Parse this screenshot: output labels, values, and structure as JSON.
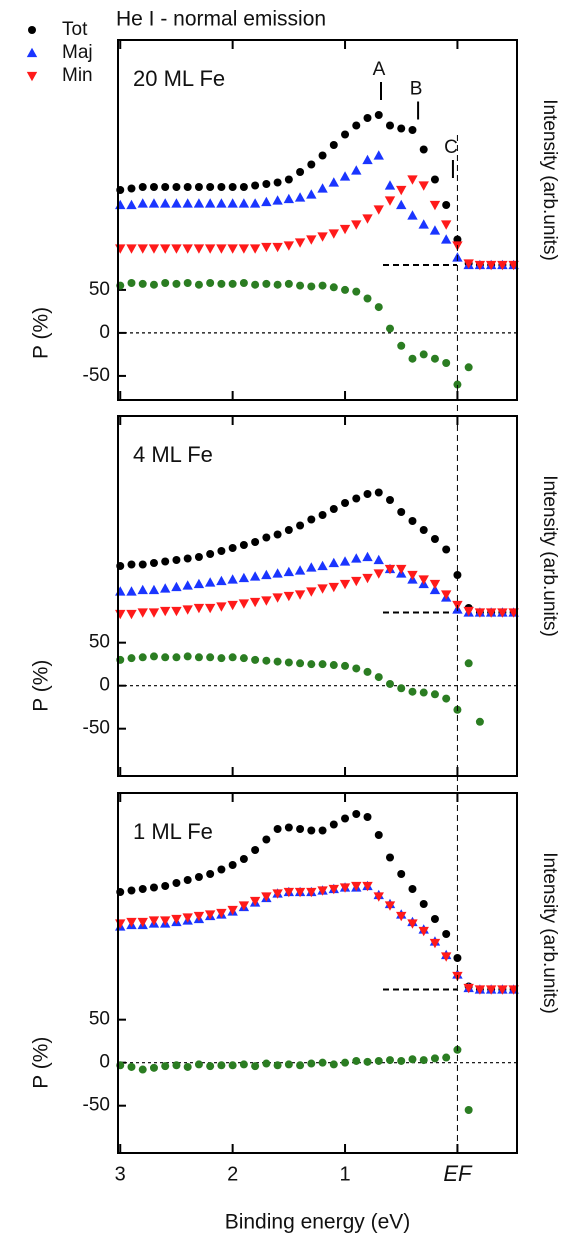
{
  "chart_data": [
    {
      "type": "scatter",
      "title": "He I - normal emission",
      "label": "20 ML Fe",
      "x": [
        3.0,
        2.9,
        2.8,
        2.7,
        2.6,
        2.5,
        2.4,
        2.3,
        2.2,
        2.1,
        2.0,
        1.9,
        1.8,
        1.7,
        1.6,
        1.5,
        1.4,
        1.3,
        1.2,
        1.1,
        1.0,
        0.9,
        0.8,
        0.7,
        0.6,
        0.5,
        0.4,
        0.3,
        0.2,
        0.1,
        0.0,
        -0.1,
        -0.2,
        -0.3,
        -0.4,
        -0.5
      ],
      "xlim": [
        3.02,
        -0.53
      ],
      "xticks": [
        3,
        2,
        1,
        0
      ],
      "ylim": [
        -78,
        108
      ],
      "yticks": [
        -50,
        0,
        50
      ],
      "ylabel": "P (%)",
      "y2lim": [
        -10,
        150
      ],
      "y2label": "Intensity (arb.units)",
      "annotations": [
        {
          "text": "A",
          "x": 0.68,
          "y": 110
        },
        {
          "text": "B",
          "x": 0.35,
          "y": 97
        },
        {
          "text": "C",
          "x": 0.04,
          "y": 58
        }
      ],
      "series": [
        {
          "name": "Tot",
          "color": "#000000",
          "marker": "circle",
          "axis": "y2",
          "values": [
            50,
            51,
            52,
            52,
            52,
            52,
            52,
            52,
            52,
            52,
            52,
            52,
            53,
            54,
            55,
            57,
            62,
            67,
            73,
            80,
            87,
            93,
            98,
            100,
            93,
            91,
            90,
            77,
            57,
            40,
            17,
            1,
            0,
            0,
            0,
            0
          ]
        },
        {
          "name": "Maj",
          "color": "#1a35ff",
          "marker": "triangle-up",
          "axis": "y2",
          "values": [
            40,
            40,
            41,
            41,
            41,
            41,
            41,
            41,
            41,
            41,
            41,
            41,
            41,
            42,
            43,
            44,
            45,
            47,
            51,
            55,
            59,
            63,
            70,
            73,
            53,
            40,
            33,
            27,
            23,
            17,
            5,
            0,
            0,
            0,
            0,
            0
          ]
        },
        {
          "name": "Min",
          "color": "#ff1a1a",
          "marker": "triangle-down",
          "axis": "y2",
          "values": [
            11,
            11,
            11,
            11,
            11,
            11,
            11,
            11,
            11,
            11,
            11,
            11,
            11,
            12,
            12,
            13,
            15,
            17,
            19,
            21,
            24,
            27,
            31,
            37,
            43,
            50,
            57,
            53,
            40,
            27,
            13,
            1,
            0,
            0,
            0,
            0
          ]
        },
        {
          "color": "#2b7d22",
          "marker": "circle",
          "values": [
            55,
            58,
            57,
            56,
            58,
            57,
            58,
            56,
            58,
            57,
            57,
            58,
            56,
            57,
            56,
            57,
            55,
            54,
            55,
            53,
            50,
            48,
            40,
            30,
            5,
            -15,
            -30,
            -25,
            -30,
            -35,
            -60,
            -40,
            null,
            null,
            null,
            null
          ]
        }
      ]
    },
    {
      "type": "scatter",
      "label": "4 ML Fe",
      "x": [
        3.0,
        2.9,
        2.8,
        2.7,
        2.6,
        2.5,
        2.4,
        2.3,
        2.2,
        2.1,
        2.0,
        1.9,
        1.8,
        1.7,
        1.6,
        1.5,
        1.4,
        1.3,
        1.2,
        1.1,
        1.0,
        0.9,
        0.8,
        0.7,
        0.6,
        0.5,
        0.4,
        0.3,
        0.2,
        0.1,
        0.0,
        -0.1,
        -0.2,
        -0.3,
        -0.4,
        -0.5
      ],
      "xlim": [
        3.02,
        -0.53
      ],
      "xticks": [
        3,
        2,
        1,
        0
      ],
      "ylim": [
        -105,
        81
      ],
      "yticks": [
        -50,
        0,
        50
      ],
      "ylabel": "P (%)",
      "y2lim": [
        -29,
        131
      ],
      "y2label": "Intensity (arb.units)",
      "series": [
        {
          "color": "#000000",
          "marker": "circle",
          "axis": "y2",
          "values": [
            31,
            32,
            32,
            33,
            34,
            35,
            36,
            37,
            39,
            41,
            43,
            45,
            47,
            50,
            52,
            55,
            58,
            62,
            65,
            69,
            73,
            76,
            79,
            80,
            75,
            67,
            61,
            55,
            49,
            42,
            25,
            3,
            0,
            0,
            0,
            0
          ]
        },
        {
          "color": "#1a35ff",
          "marker": "triangle-up",
          "axis": "y2",
          "values": [
            14,
            14,
            15,
            15,
            16,
            17,
            18,
            19,
            20,
            21,
            22,
            23,
            24,
            25,
            26,
            27,
            28,
            30,
            31,
            33,
            34,
            36,
            37,
            35,
            29,
            26,
            22,
            19,
            15,
            10,
            2,
            0,
            0,
            0,
            0,
            0
          ]
        },
        {
          "color": "#ff1a1a",
          "marker": "triangle-down",
          "axis": "y2",
          "values": [
            -1,
            -1,
            0,
            0,
            1,
            1,
            2,
            3,
            3,
            4,
            5,
            6,
            7,
            8,
            10,
            11,
            12,
            14,
            16,
            17,
            19,
            21,
            23,
            26,
            29,
            29,
            25,
            22,
            19,
            12,
            5,
            1,
            0,
            0,
            0,
            0
          ]
        },
        {
          "color": "#2b7d22",
          "marker": "circle",
          "values": [
            30,
            32,
            33,
            34,
            33,
            33,
            34,
            33,
            33,
            32,
            33,
            32,
            30,
            29,
            28,
            27,
            26,
            25,
            25,
            24,
            23,
            20,
            16,
            10,
            2,
            -3,
            -7,
            -8,
            -10,
            -15,
            -28,
            26,
            -42,
            null,
            null,
            null
          ]
        }
      ]
    },
    {
      "type": "scatter",
      "label": "1 ML Fe",
      "x": [
        3.0,
        2.9,
        2.8,
        2.7,
        2.6,
        2.5,
        2.4,
        2.3,
        2.2,
        2.1,
        2.0,
        1.9,
        1.8,
        1.7,
        1.6,
        1.5,
        1.4,
        1.3,
        1.2,
        1.1,
        1.0,
        0.9,
        0.8,
        0.7,
        0.6,
        0.5,
        0.4,
        0.3,
        0.2,
        0.1,
        0.0,
        -0.1,
        -0.2,
        -0.3,
        -0.4,
        -0.5
      ],
      "xlim": [
        3.02,
        -0.53
      ],
      "xticks": [
        3,
        2,
        1,
        {
          "value": 0,
          "label": "EF"
        }
      ],
      "xlabel": "Binding energy (eV)",
      "ylim": [
        -105,
        81
      ],
      "yticks": [
        -50,
        0,
        50
      ],
      "ylabel": "P (%)",
      "y2lim": [
        -29,
        131
      ],
      "y2label": "Intensity (arb.units)",
      "series": [
        {
          "color": "#000000",
          "marker": "circle",
          "axis": "y2",
          "values": [
            65,
            66,
            67,
            68,
            69,
            71,
            73,
            75,
            77,
            80,
            83,
            87,
            93,
            100,
            107,
            108,
            107,
            106,
            106,
            110,
            114,
            117,
            115,
            103,
            88,
            77,
            67,
            57,
            47,
            37,
            21,
            2,
            0,
            0,
            0,
            0
          ]
        },
        {
          "color": "#1a35ff",
          "marker": "triangle-up",
          "axis": "y2",
          "values": [
            42,
            43,
            43,
            44,
            44,
            45,
            46,
            47,
            49,
            50,
            52,
            55,
            58,
            61,
            64,
            65,
            65,
            65,
            66,
            67,
            68,
            68,
            69,
            63,
            57,
            50,
            45,
            40,
            32,
            23,
            10,
            1,
            0,
            0,
            0,
            0
          ]
        },
        {
          "color": "#ff1a1a",
          "marker": "triangle-down",
          "axis": "y2",
          "values": [
            44,
            45,
            45,
            46,
            46,
            47,
            48,
            49,
            50,
            51,
            53,
            56,
            59,
            62,
            64,
            65,
            65,
            65,
            66,
            67,
            68,
            69,
            69,
            62,
            56,
            49,
            44,
            39,
            31,
            22,
            9,
            1,
            0,
            0,
            0,
            0
          ]
        },
        {
          "color": "#2b7d22",
          "marker": "circle",
          "values": [
            -3,
            -5,
            -8,
            -6,
            -4,
            -3,
            -5,
            -2,
            -4,
            -3,
            -3,
            -2,
            -4,
            -1,
            -3,
            -2,
            -3,
            -1,
            0,
            -2,
            0,
            2,
            1,
            2,
            3,
            2,
            4,
            3,
            5,
            6,
            15,
            -55,
            null,
            null,
            null,
            null
          ]
        }
      ]
    }
  ]
}
